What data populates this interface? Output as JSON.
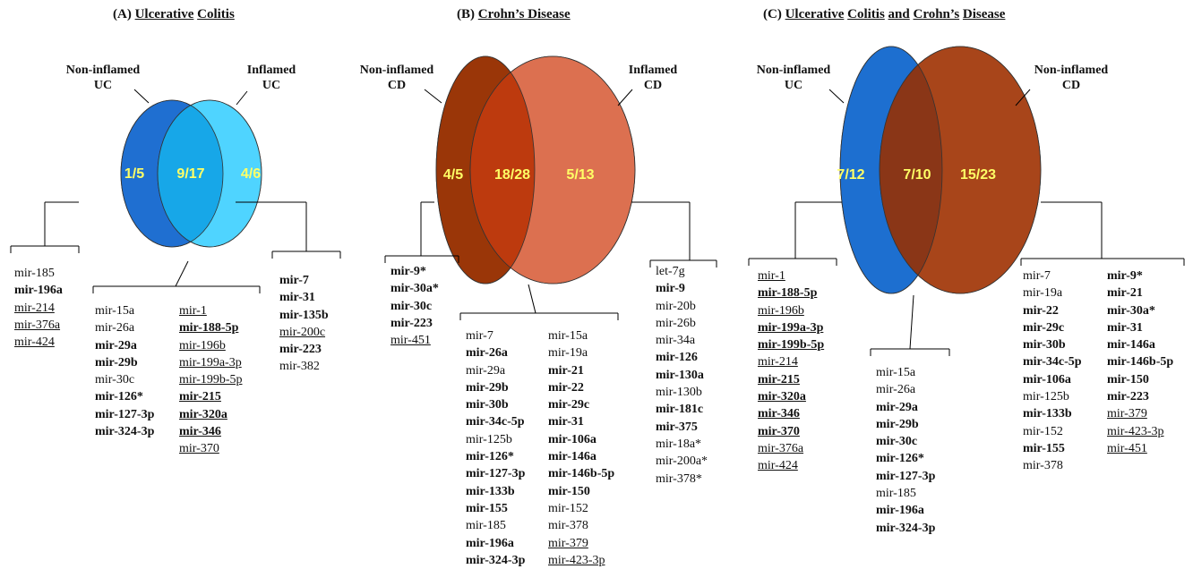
{
  "panels": [
    {
      "title": [
        {
          "t": "(A) ",
          "u": false
        },
        {
          "t": "Ulcerative",
          "u": true
        },
        {
          "t": " ",
          "u": false
        },
        {
          "t": "Colitis",
          "u": true
        }
      ],
      "left_label": [
        "Non-inflamed",
        "UC"
      ],
      "right_label": [
        "Inflamed",
        "UC"
      ],
      "colors": {
        "left": "#1f6fd1",
        "overlap": "#17a7e8",
        "right": "#4fd4ff"
      },
      "counts": {
        "left": "1/5",
        "overlap": "9/17",
        "right": "4/6"
      },
      "lists": {
        "left": [
          [
            "mir-185",
            ""
          ],
          [
            "mir-196a",
            "b"
          ],
          [
            "mir-214",
            "u"
          ],
          [
            "mir-376a",
            "u"
          ],
          [
            "mir-424",
            "u"
          ]
        ],
        "overlap_a": [
          [
            "mir-15a",
            ""
          ],
          [
            "mir-26a",
            ""
          ],
          [
            "mir-29a",
            "b"
          ],
          [
            "mir-29b",
            "b"
          ],
          [
            "mir-30c",
            ""
          ],
          [
            "mir-126*",
            "b"
          ],
          [
            "mir-127-3p",
            "b"
          ],
          [
            "mir-324-3p",
            "b"
          ]
        ],
        "overlap_b": [
          [
            "mir-1",
            "u"
          ],
          [
            "mir-188-5p",
            "bu"
          ],
          [
            "mir-196b",
            "u"
          ],
          [
            "mir-199a-3p",
            "u"
          ],
          [
            "mir-199b-5p",
            "u"
          ],
          [
            "mir-215",
            "bu"
          ],
          [
            "mir-320a",
            "bu"
          ],
          [
            "mir-346",
            "bu"
          ],
          [
            "mir-370",
            "u"
          ]
        ],
        "right": [
          [
            "mir-7",
            "b"
          ],
          [
            "mir-31",
            "b"
          ],
          [
            "mir-135b",
            "b"
          ],
          [
            "mir-200c",
            "u"
          ],
          [
            "mir-223",
            "b"
          ],
          [
            "mir-382",
            ""
          ]
        ]
      }
    },
    {
      "title": [
        {
          "t": "(B) ",
          "u": false
        },
        {
          "t": "Crohn’s Disease",
          "u": true
        }
      ],
      "left_label": [
        "Non-inflamed",
        "CD"
      ],
      "right_label": [
        "Inflamed",
        "CD"
      ],
      "colors": {
        "left": "#9a3608",
        "overlap": "#bd3a0e",
        "right": "#dc7050"
      },
      "counts": {
        "left": "4/5",
        "overlap": "18/28",
        "right": "5/13"
      },
      "lists": {
        "left": [
          [
            "mir-9*",
            "b"
          ],
          [
            "mir-30a*",
            "b"
          ],
          [
            "mir-30c",
            "b"
          ],
          [
            "mir-223",
            "b"
          ],
          [
            "mir-451",
            "u"
          ]
        ],
        "overlap_a": [
          [
            "mir-7",
            ""
          ],
          [
            "mir-26a",
            "b"
          ],
          [
            "mir-29a",
            ""
          ],
          [
            "mir-29b",
            "b"
          ],
          [
            "mir-30b",
            "b"
          ],
          [
            "mir-34c-5p",
            "b"
          ],
          [
            "mir-125b",
            ""
          ],
          [
            "mir-126*",
            "b"
          ],
          [
            "mir-127-3p",
            "b"
          ],
          [
            "mir-133b",
            "b"
          ],
          [
            "mir-155",
            "b"
          ],
          [
            "mir-185",
            ""
          ],
          [
            "mir-196a",
            "b"
          ],
          [
            "mir-324-3p",
            "b"
          ]
        ],
        "overlap_b": [
          [
            "mir-15a",
            ""
          ],
          [
            "mir-19a",
            ""
          ],
          [
            "mir-21",
            "b"
          ],
          [
            "mir-22",
            "b"
          ],
          [
            "mir-29c",
            "b"
          ],
          [
            "mir-31",
            "b"
          ],
          [
            "mir-106a",
            "b"
          ],
          [
            "mir-146a",
            "b"
          ],
          [
            "mir-146b-5p",
            "b"
          ],
          [
            "mir-150",
            "b"
          ],
          [
            "mir-152",
            ""
          ],
          [
            "mir-378",
            ""
          ],
          [
            "mir-379",
            "u"
          ],
          [
            "mir-423-3p",
            "u"
          ]
        ],
        "right": [
          [
            "let-7g",
            ""
          ],
          [
            "mir-9",
            "b"
          ],
          [
            "mir-20b",
            ""
          ],
          [
            "mir-26b",
            ""
          ],
          [
            "mir-34a",
            ""
          ],
          [
            "mir-126",
            "b"
          ],
          [
            "mir-130a",
            "b"
          ],
          [
            "mir-130b",
            ""
          ],
          [
            "mir-181c",
            "b"
          ],
          [
            "mir-375",
            "b"
          ],
          [
            "mir-18a*",
            ""
          ],
          [
            "mir-200a*",
            ""
          ],
          [
            "mir-378*",
            ""
          ]
        ]
      }
    },
    {
      "title": [
        {
          "t": "(C) ",
          "u": false
        },
        {
          "t": "Ulcerative",
          "u": true
        },
        {
          "t": " ",
          "u": false
        },
        {
          "t": "Colitis",
          "u": true
        },
        {
          "t": " ",
          "u": false
        },
        {
          "t": "and",
          "u": true
        },
        {
          "t": " ",
          "u": false
        },
        {
          "t": "Crohn’s",
          "u": true
        },
        {
          "t": " ",
          "u": false
        },
        {
          "t": "Disease",
          "u": true
        }
      ],
      "left_label": [
        "Non-inflamed",
        "UC"
      ],
      "right_label": [
        "Non-inflamed",
        "CD"
      ],
      "colors": {
        "left": "#1d6fd0",
        "overlap": "#8a3617",
        "right": "#a8451a"
      },
      "counts": {
        "left": "7/12",
        "overlap": "7/10",
        "right": "15/23"
      },
      "lists": {
        "left": [
          [
            "mir-1",
            "u"
          ],
          [
            "mir-188-5p",
            "bu"
          ],
          [
            "mir-196b",
            "u"
          ],
          [
            "mir-199a-3p",
            "bu"
          ],
          [
            "mir-199b-5p",
            "bu"
          ],
          [
            "mir-214",
            "u"
          ],
          [
            "mir-215",
            "bu"
          ],
          [
            "mir-320a",
            "bu"
          ],
          [
            "mir-346",
            "bu"
          ],
          [
            "mir-370",
            "bu"
          ],
          [
            "mir-376a",
            "u"
          ],
          [
            "mir-424",
            "u"
          ]
        ],
        "overlap_a": [
          [
            "mir-15a",
            ""
          ],
          [
            "mir-26a",
            ""
          ],
          [
            "mir-29a",
            "b"
          ],
          [
            "mir-29b",
            "b"
          ],
          [
            "mir-30c",
            "b"
          ],
          [
            "mir-126*",
            "b"
          ],
          [
            "mir-127-3p",
            "b"
          ],
          [
            "mir-185",
            ""
          ],
          [
            "mir-196a",
            "b"
          ],
          [
            "mir-324-3p",
            "b"
          ]
        ],
        "right_a": [
          [
            "mir-7",
            ""
          ],
          [
            "mir-19a",
            ""
          ],
          [
            "mir-22",
            "b"
          ],
          [
            "mir-29c",
            "b"
          ],
          [
            "mir-30b",
            "b"
          ],
          [
            "mir-34c-5p",
            "b"
          ],
          [
            "mir-106a",
            "b"
          ],
          [
            "mir-125b",
            ""
          ],
          [
            "mir-133b",
            "b"
          ],
          [
            "mir-152",
            ""
          ],
          [
            "mir-155",
            "b"
          ],
          [
            "mir-378",
            ""
          ]
        ],
        "right_b": [
          [
            "mir-9*",
            "b"
          ],
          [
            "mir-21",
            "b"
          ],
          [
            "mir-30a*",
            "b"
          ],
          [
            "mir-31",
            "b"
          ],
          [
            "mir-146a",
            "b"
          ],
          [
            "mir-146b-5p",
            "b"
          ],
          [
            "mir-150",
            "b"
          ],
          [
            "mir-223",
            "b"
          ],
          [
            "mir-379",
            "u"
          ],
          [
            "mir-423-3p",
            "u"
          ],
          [
            "mir-451",
            "u"
          ]
        ]
      }
    }
  ]
}
